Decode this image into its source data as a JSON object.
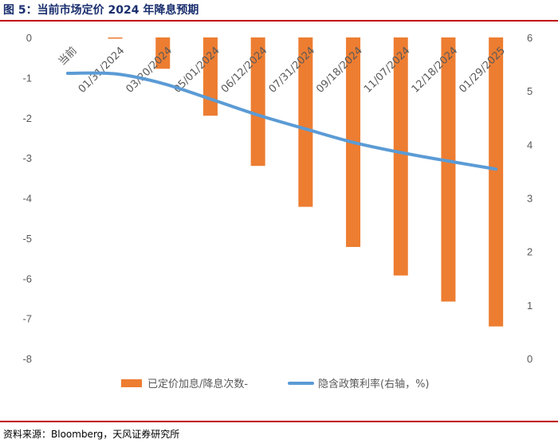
{
  "title": "图 5：当前市场定价 2024 年降息预期",
  "source": "资料来源：Bloomberg，天风证券研究所",
  "colors": {
    "bar": "#ed7d31",
    "line": "#5b9bd5",
    "title": "#1a2f6e",
    "rule": "#c00000"
  },
  "chart_data": {
    "type": "bar+line",
    "title": "当前市场定价 2024 年降息预期",
    "categories": [
      "当前",
      "01/31/2024",
      "03/20/2024",
      "05/01/2024",
      "06/12/2024",
      "07/31/2024",
      "09/18/2024",
      "11/07/2024",
      "12/18/2024",
      "01/29/2025"
    ],
    "series": [
      {
        "name": "已定价加息/降息次数-",
        "axis": "left",
        "kind": "bar",
        "values": [
          0,
          -0.03,
          -0.78,
          -1.95,
          -3.2,
          -4.22,
          -5.22,
          -5.93,
          -6.58,
          -7.2
        ]
      },
      {
        "name": "隐含政策利率(右轴，%)",
        "axis": "right",
        "kind": "line",
        "values": [
          5.33,
          5.32,
          5.14,
          4.85,
          4.55,
          4.29,
          4.04,
          3.85,
          3.69,
          3.54
        ]
      }
    ],
    "left_axis": {
      "min": -8,
      "max": 0,
      "ticks": [
        "0",
        "-1",
        "-2",
        "-3",
        "-4",
        "-5",
        "-6",
        "-7",
        "-8"
      ]
    },
    "right_axis": {
      "min": 0,
      "max": 6,
      "ticks": [
        "6",
        "5",
        "4",
        "3",
        "2",
        "1",
        "0"
      ]
    },
    "legend_position": "bottom"
  }
}
